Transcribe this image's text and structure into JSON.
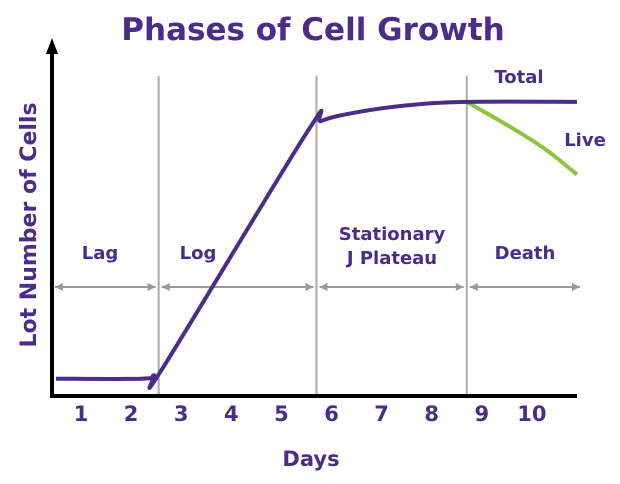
{
  "chart_data": {
    "type": "line",
    "title": "Phases of Cell Growth",
    "xlabel": "Days",
    "ylabel": "Lot Number of Cells",
    "x_ticks": [
      "1",
      "2",
      "3",
      "4",
      "5",
      "6",
      "7",
      "8",
      "9",
      "10"
    ],
    "xlim": [
      0.4,
      10.9
    ],
    "ylim": [
      0,
      10
    ],
    "grid": false,
    "phases": [
      {
        "label": "Lag",
        "start": 0.5,
        "end": 2.55
      },
      {
        "label": "Log",
        "start": 2.55,
        "end": 5.7
      },
      {
        "label": "Stationary",
        "label2": "J Plateau",
        "start": 5.7,
        "end": 8.7
      },
      {
        "label": "Death",
        "start": 8.7,
        "end": 10.9
      }
    ],
    "phase_boundaries": [
      2.55,
      5.7,
      8.7
    ],
    "series": [
      {
        "name": "Total",
        "color": "#4b2c8a",
        "points": [
          [
            0.5,
            0.5
          ],
          [
            2.2,
            0.5
          ],
          [
            2.45,
            0.6
          ],
          [
            2.65,
            0.85
          ],
          [
            5.5,
            7.6
          ],
          [
            5.8,
            7.95
          ],
          [
            6.5,
            8.2
          ],
          [
            7.5,
            8.4
          ],
          [
            8.7,
            8.5
          ],
          [
            10.9,
            8.5
          ]
        ]
      },
      {
        "name": "Live",
        "color": "#8cc63f",
        "points": [
          [
            8.7,
            8.5
          ],
          [
            9.6,
            7.75
          ],
          [
            10.3,
            7.1
          ],
          [
            10.9,
            6.4
          ]
        ]
      }
    ]
  },
  "colors": {
    "text": "#4b2c8a",
    "axis": "#000000",
    "divider": "#aaaaaa"
  }
}
